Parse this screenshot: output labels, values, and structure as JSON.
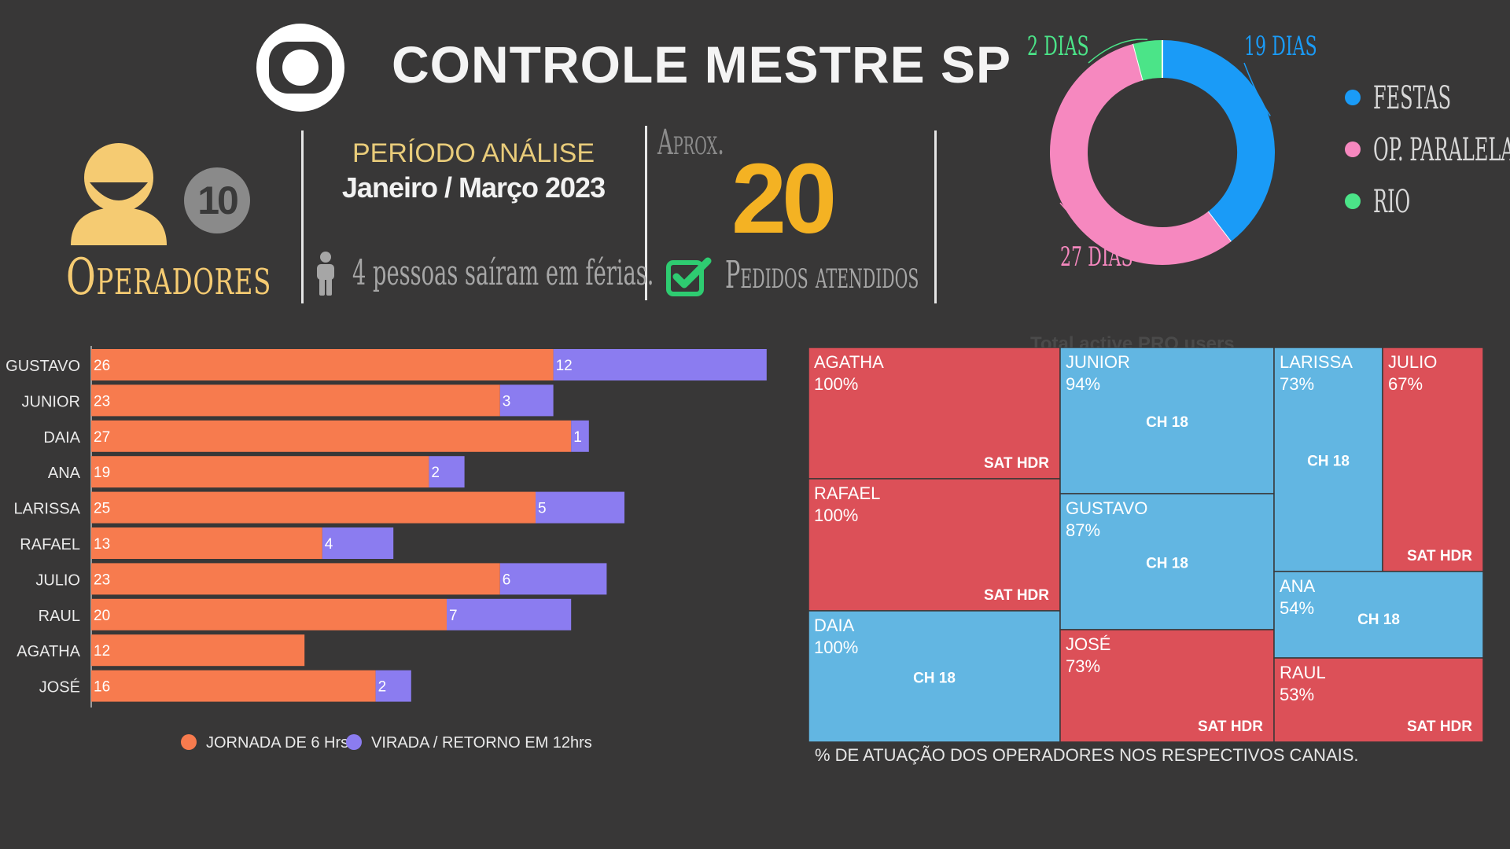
{
  "header": {
    "title": "CONTROLE MESTRE SP",
    "operators_count": "10",
    "operators_label": "Operadores",
    "period_label": "PERÍODO ANÁLISE",
    "period_value": "Janeiro / Março 2023",
    "vacation_note": "4 pessoas saíram em férias.",
    "approx_label": "Aprox.",
    "orders_count": "20",
    "orders_label": "Pedidos atendidos",
    "ghost_text": "Total active PRO users"
  },
  "colors": {
    "background": "#383737",
    "accent_yellow": "#f4b223",
    "operator_yellow": "#f5cb72",
    "check_green": "#2ecc71",
    "bar_orange": "#f77b4e",
    "bar_purple": "#8b7cf0",
    "tm_red": "#dc5058",
    "tm_blue": "#62b6e2"
  },
  "chart_data": [
    {
      "type": "pie",
      "variant": "donut",
      "labels": [
        "FESTAS",
        "OP. PARALELA",
        "RIO"
      ],
      "values": [
        19,
        27,
        2
      ],
      "data_labels": [
        "19 DIAS",
        "27 DIAS",
        "2 DIAS"
      ],
      "colors": [
        "#1a9bf7",
        "#f688bf",
        "#4be488"
      ],
      "legend": "right"
    },
    {
      "type": "bar",
      "orientation": "horizontal",
      "stacked": true,
      "categories": [
        "GUSTAVO",
        "JUNIOR",
        "DAIA",
        "ANA",
        "LARISSA",
        "RAFAEL",
        "JULIO",
        "RAUL",
        "AGATHA",
        "JOSÉ"
      ],
      "series": [
        {
          "name": "JORNADA DE 6 Hrs",
          "color": "#f77b4e",
          "values": [
            26,
            23,
            27,
            19,
            25,
            13,
            23,
            20,
            12,
            16
          ]
        },
        {
          "name": "VIRADA / RETORNO EM 12hrs",
          "color": "#8b7cf0",
          "values": [
            12,
            3,
            1,
            2,
            5,
            4,
            6,
            7,
            0,
            2
          ]
        }
      ],
      "xlim": [
        0,
        38
      ],
      "legend": "bottom"
    },
    {
      "type": "treemap",
      "caption": "% DE ATUAÇÃO DOS OPERADORES NOS RESPECTIVOS CANAIS.",
      "items": [
        {
          "name": "AGATHA",
          "percent": "100%",
          "channel": "SAT HDR"
        },
        {
          "name": "RAFAEL",
          "percent": "100%",
          "channel": "SAT HDR"
        },
        {
          "name": "DAIA",
          "percent": "100%",
          "channel": "CH 18"
        },
        {
          "name": "JUNIOR",
          "percent": "94%",
          "channel": "CH 18"
        },
        {
          "name": "GUSTAVO",
          "percent": "87%",
          "channel": "CH 18"
        },
        {
          "name": "JOSÉ",
          "percent": "73%",
          "channel": "SAT HDR"
        },
        {
          "name": "LARISSA",
          "percent": "73%",
          "channel": "CH 18"
        },
        {
          "name": "JULIO",
          "percent": "67%",
          "channel": "SAT HDR"
        },
        {
          "name": "ANA",
          "percent": "54%",
          "channel": "CH 18"
        },
        {
          "name": "RAUL",
          "percent": "53%",
          "channel": "SAT HDR"
        }
      ]
    }
  ]
}
